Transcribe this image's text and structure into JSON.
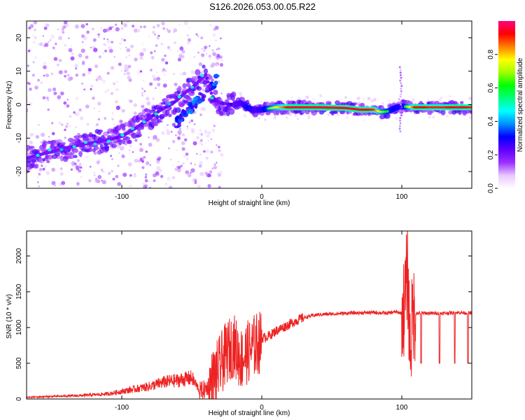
{
  "title": "S126.2026.053.00.05.R22",
  "spectrogram": {
    "type": "heatmap",
    "xlabel": "Height of straight line (km)",
    "ylabel": "Frequency (Hz)",
    "xlim": [
      -168,
      150
    ],
    "ylim": [
      -25,
      25
    ],
    "xticks": [
      -100,
      0,
      100
    ],
    "xtick_labels": [
      "-100",
      "0",
      "100"
    ],
    "yticks": [
      -20,
      -10,
      0,
      10,
      20
    ],
    "ytick_labels": [
      "-20",
      "-10",
      "0",
      "10",
      "20"
    ],
    "ridge": {
      "x": [
        -168,
        -150,
        -130,
        -115,
        -100,
        -90,
        -80,
        -72,
        -65,
        -60,
        -55,
        -50,
        -45,
        -40,
        -35,
        -30,
        -25,
        -20,
        -15,
        -10,
        -5,
        0,
        10,
        20,
        40,
        60,
        70,
        80,
        85,
        90,
        95,
        100,
        110,
        120,
        130,
        140,
        150
      ],
      "f": [
        -16,
        -14,
        -12,
        -11,
        -9.5,
        -7,
        -4,
        -1.5,
        0,
        1.5,
        3.5,
        5,
        7,
        9,
        2,
        0.5,
        0.2,
        0,
        0.5,
        -1,
        -1.5,
        -1.5,
        -0.8,
        -0.8,
        -0.8,
        -1,
        -1.5,
        -1.5,
        -2.2,
        -2,
        -1,
        -0.5,
        -0.8,
        -0.8,
        -0.8,
        -0.8,
        -0.8
      ],
      "amplitude": [
        0.25,
        0.25,
        0.25,
        0.3,
        0.3,
        0.3,
        0.3,
        0.35,
        0.35,
        0.35,
        0.3,
        0.3,
        0.3,
        0.3,
        0.35,
        0.35,
        0.4,
        0.4,
        0.45,
        0.55,
        0.45,
        0.5,
        0.75,
        0.95,
        0.95,
        0.95,
        0.95,
        0.9,
        0.7,
        0.6,
        0.55,
        0.5,
        0.95,
        0.9,
        0.9,
        0.95,
        0.9
      ]
    }
  },
  "colorbar": {
    "label": "Normalized spectral amplitude",
    "range": [
      0,
      1
    ],
    "ticks": [
      0,
      0.2,
      0.4,
      0.6,
      0.8
    ],
    "tick_labels": [
      "0.0",
      "0.2",
      "0.4",
      "0.6",
      "0.8"
    ],
    "colors": [
      "#ffffff",
      "#e8c8ff",
      "#9b30ff",
      "#6000ff",
      "#0000ff",
      "#0090ff",
      "#00ffff",
      "#00ff80",
      "#00ff00",
      "#a0ff00",
      "#ffff00",
      "#ff8000",
      "#ff0000",
      "#ff0080"
    ]
  },
  "chart_data": {
    "type": "line",
    "title": "S126.2026.053.00.05.R22",
    "xlabel": "Height of straight line (km)",
    "ylabel": "SNR (10 * v/v)",
    "xlim": [
      -168,
      150
    ],
    "ylim": [
      0,
      2350
    ],
    "xticks": [
      -100,
      0,
      100
    ],
    "xtick_labels": [
      "-100",
      "0",
      "100"
    ],
    "yticks": [
      0,
      500,
      1000,
      1500,
      2000
    ],
    "ytick_labels": [
      "0",
      "500",
      "1000",
      "1500",
      "2000"
    ],
    "line_color": "#ee2222",
    "series": [
      {
        "name": "SNR",
        "x": [
          -168,
          -150,
          -130,
          -110,
          -100,
          -90,
          -80,
          -70,
          -60,
          -50,
          -45,
          -40,
          -35,
          -30,
          -25,
          -20,
          -15,
          -10,
          -5,
          0,
          5,
          10,
          15,
          20,
          25,
          30,
          40,
          60,
          80,
          90,
          95,
          100,
          102,
          104,
          106,
          108,
          110,
          115,
          120,
          130,
          140,
          150
        ],
        "y": [
          20,
          30,
          40,
          60,
          90,
          120,
          150,
          200,
          220,
          250,
          120,
          150,
          300,
          500,
          700,
          800,
          600,
          700,
          800,
          850,
          880,
          950,
          1000,
          1050,
          1100,
          1140,
          1180,
          1200,
          1210,
          1200,
          1220,
          1200,
          1300,
          1800,
          700,
          1200,
          1200,
          1200,
          1200,
          1200,
          1210,
          1200
        ]
      }
    ]
  }
}
